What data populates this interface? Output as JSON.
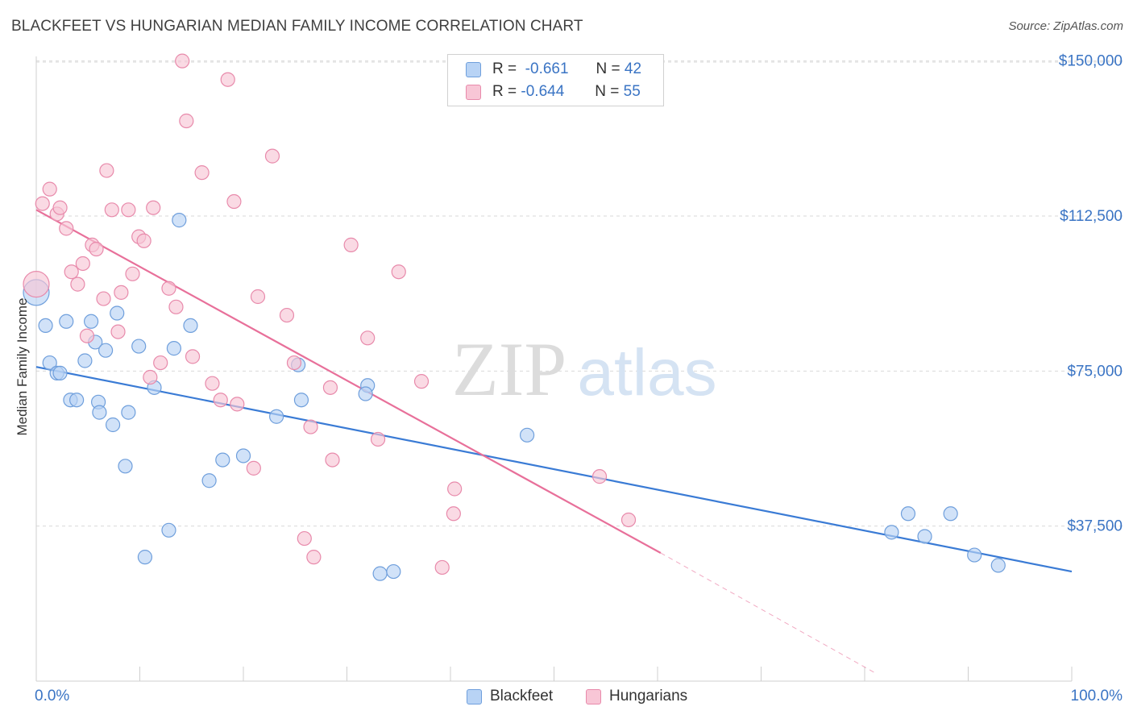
{
  "title": "BLACKFEET VS HUNGARIAN MEDIAN FAMILY INCOME CORRELATION CHART",
  "source": "Source: ZipAtlas.com",
  "watermark": {
    "zip": "ZIP",
    "atlas": "atlas"
  },
  "colors": {
    "blue": "#3a7bd5",
    "blue_fill": "#b8d3f5",
    "pink": "#e8709a",
    "pink_fill": "#f8c6d6",
    "axis_text": "#3a74c4",
    "grid": "#d9d9d9"
  },
  "legend": {
    "rows": [
      {
        "r_label": "R =",
        "r_value": "-0.661",
        "n_label": "N =",
        "n_value": "42"
      },
      {
        "r_label": "R =",
        "r_value": "-0.644",
        "n_label": "N =",
        "n_value": "55"
      }
    ],
    "bottom": [
      "Blackfeet",
      "Hungarians"
    ]
  },
  "chart_data": {
    "type": "scatter",
    "title": "BLACKFEET VS HUNGARIAN MEDIAN FAMILY INCOME CORRELATION CHART",
    "xlabel": "",
    "ylabel": "Median Family Income",
    "xlim": [
      0,
      100
    ],
    "ylim": [
      0,
      155000
    ],
    "x_tick_labels": [
      "0.0%",
      "100.0%"
    ],
    "y_ticks": [
      37500,
      75000,
      112500,
      150000
    ],
    "y_tick_labels": [
      "$37,500",
      "$75,000",
      "$112,500",
      "$150,000"
    ],
    "grid": true,
    "legend_position": "top-center",
    "series": [
      {
        "name": "Blackfeet",
        "color": "#3a7bd5",
        "trend": {
          "x0": 0,
          "y0": 76000,
          "x1": 100,
          "y1": 26500
        },
        "points": [
          [
            0,
            94000
          ],
          [
            0.9,
            86000
          ],
          [
            1.3,
            77000
          ],
          [
            2,
            74500
          ],
          [
            2.3,
            74500
          ],
          [
            2.9,
            87000
          ],
          [
            3.3,
            68000
          ],
          [
            3.9,
            68000
          ],
          [
            4.7,
            77500
          ],
          [
            5.3,
            87000
          ],
          [
            5.7,
            82000
          ],
          [
            6.7,
            80000
          ],
          [
            6,
            67500
          ],
          [
            6.1,
            65000
          ],
          [
            7.4,
            62000
          ],
          [
            7.8,
            89000
          ],
          [
            8.6,
            52000
          ],
          [
            8.9,
            65000
          ],
          [
            9.9,
            81000
          ],
          [
            10.5,
            30000
          ],
          [
            11.4,
            71000
          ],
          [
            12.8,
            36500
          ],
          [
            13.3,
            80500
          ],
          [
            13.8,
            111500
          ],
          [
            14.9,
            86000
          ],
          [
            16.7,
            48500
          ],
          [
            18,
            53500
          ],
          [
            20,
            54500
          ],
          [
            23.2,
            64000
          ],
          [
            25.3,
            76500
          ],
          [
            25.6,
            68000
          ],
          [
            32,
            71500
          ],
          [
            31.8,
            69500
          ],
          [
            33.2,
            26000
          ],
          [
            34.5,
            26500
          ],
          [
            47.4,
            59500
          ],
          [
            82.6,
            36000
          ],
          [
            84.2,
            40500
          ],
          [
            85.8,
            35000
          ],
          [
            88.3,
            40500
          ],
          [
            90.6,
            30500
          ],
          [
            92.9,
            28000
          ]
        ]
      },
      {
        "name": "Hungarians",
        "color": "#e8709a",
        "trend": {
          "x0": 0,
          "y0": 114000,
          "x1": 60.3,
          "y1": 31000
        },
        "trend_extension": {
          "x0": 60.3,
          "y0": 31000,
          "x1": 81,
          "y1": 2000
        },
        "points": [
          [
            0,
            96000
          ],
          [
            0.6,
            115500
          ],
          [
            1.3,
            119000
          ],
          [
            2,
            113000
          ],
          [
            2.3,
            114500
          ],
          [
            2.9,
            109500
          ],
          [
            3.4,
            99000
          ],
          [
            4,
            96000
          ],
          [
            4.5,
            101000
          ],
          [
            4.9,
            83500
          ],
          [
            5.4,
            105500
          ],
          [
            5.8,
            104500
          ],
          [
            6.5,
            92500
          ],
          [
            6.8,
            123500
          ],
          [
            7.3,
            114000
          ],
          [
            7.9,
            84500
          ],
          [
            8.2,
            94000
          ],
          [
            8.9,
            114000
          ],
          [
            9.3,
            98500
          ],
          [
            9.9,
            107500
          ],
          [
            10.4,
            106500
          ],
          [
            11,
            73500
          ],
          [
            11.3,
            114500
          ],
          [
            12,
            77000
          ],
          [
            12.8,
            95000
          ],
          [
            13.5,
            90500
          ],
          [
            14.1,
            150000
          ],
          [
            14.5,
            135500
          ],
          [
            15.1,
            78500
          ],
          [
            16,
            123000
          ],
          [
            17,
            72000
          ],
          [
            17.8,
            68000
          ],
          [
            18.5,
            145500
          ],
          [
            19.1,
            116000
          ],
          [
            19.4,
            67000
          ],
          [
            21,
            51500
          ],
          [
            21.4,
            93000
          ],
          [
            22.8,
            127000
          ],
          [
            24.2,
            88500
          ],
          [
            24.9,
            77000
          ],
          [
            25.9,
            34500
          ],
          [
            26.5,
            61500
          ],
          [
            26.8,
            30000
          ],
          [
            28.4,
            71000
          ],
          [
            28.6,
            53500
          ],
          [
            30.4,
            105500
          ],
          [
            32,
            83000
          ],
          [
            33,
            58500
          ],
          [
            35,
            99000
          ],
          [
            37.2,
            72500
          ],
          [
            39.2,
            27500
          ],
          [
            40.3,
            40500
          ],
          [
            40.4,
            46500
          ],
          [
            54.4,
            49500
          ],
          [
            57.2,
            39000
          ]
        ]
      }
    ]
  }
}
